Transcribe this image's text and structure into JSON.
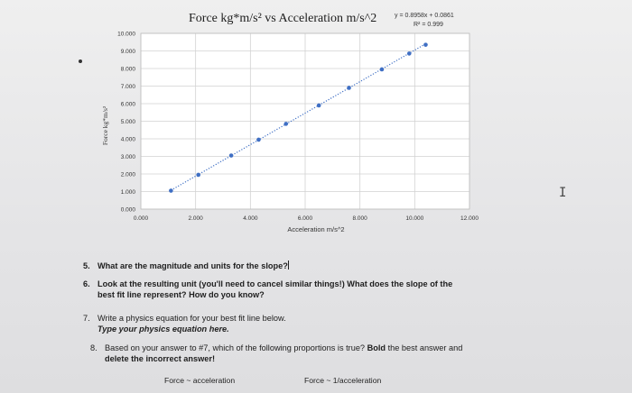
{
  "chart_data": {
    "type": "scatter",
    "title": "Force kg*m/s² vs Acceleration m/s^2",
    "xlabel": "Acceleration m/s^2",
    "ylabel": "Force kg*m/s²",
    "xlim": [
      0,
      12
    ],
    "ylim": [
      0,
      10
    ],
    "x_ticks": [
      "0.000",
      "2.000",
      "4.000",
      "6.000",
      "8.000",
      "10.000",
      "12.000"
    ],
    "y_ticks": [
      "0.000",
      "1.000",
      "2.000",
      "3.000",
      "4.000",
      "5.000",
      "6.000",
      "7.000",
      "8.000",
      "9.000",
      "10.000"
    ],
    "grid": true,
    "trendline": {
      "type": "linear",
      "slope": 0.8958,
      "intercept": 0.0861,
      "style": "dotted"
    },
    "equation": "y = 0.8958x + 0.0861",
    "r_squared": "R² = 0.999",
    "points": [
      {
        "x": 1.1,
        "y": 1.05
      },
      {
        "x": 2.1,
        "y": 1.95
      },
      {
        "x": 3.3,
        "y": 3.05
      },
      {
        "x": 4.3,
        "y": 3.95
      },
      {
        "x": 5.3,
        "y": 4.85
      },
      {
        "x": 6.5,
        "y": 5.9
      },
      {
        "x": 7.6,
        "y": 6.9
      },
      {
        "x": 8.8,
        "y": 7.95
      },
      {
        "x": 9.8,
        "y": 8.85
      },
      {
        "x": 10.4,
        "y": 9.35
      }
    ],
    "colors": {
      "marker": "#3f6fc4",
      "trendline": "#3f6fc4",
      "grid": "#d2d2d2",
      "plot_bg": "#ffffff"
    }
  },
  "questions": {
    "q5": {
      "num": "5.",
      "text": "What are the magnitude and units for the slope?"
    },
    "q6": {
      "num": "6.",
      "line1": "Look at the resulting unit (you'll need to cancel similar things!) What does the slope of the",
      "line2": "best fit line represent? How do you know?"
    },
    "q7": {
      "num": "7.",
      "line1": "Write a physics equation for your best fit line below.",
      "line2": "Type your physics equation here."
    },
    "q8": {
      "num": "8.",
      "line1_pre": "Based on your answer to #7, which of the following proportions is true?",
      "line1_bold": "Bold",
      "line1_post": "the best answer and",
      "line2": "delete the incorrect answer!"
    }
  },
  "options": {
    "opt1": "Force ~ acceleration",
    "opt2": "Force ~ 1/acceleration"
  },
  "misc": {
    "cursor_glyph": "I"
  }
}
